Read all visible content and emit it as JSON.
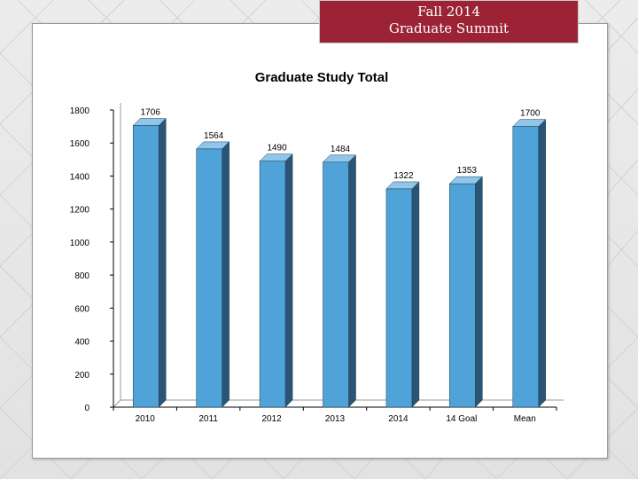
{
  "banner": {
    "line1": "Fall 2014",
    "line2": "Graduate Summit"
  },
  "colors": {
    "banner_bg": "#9b2335",
    "bar_front": "#4fa3d8",
    "bar_side": "#2b5574",
    "bar_top": "#8fc6ea"
  },
  "chart_data": {
    "type": "bar",
    "title": "Graduate Study Total",
    "xlabel": "",
    "ylabel": "",
    "categories": [
      "2010",
      "2011",
      "2012",
      "2013",
      "2014",
      "14 Goal",
      "Mean"
    ],
    "values": [
      1706,
      1564,
      1490,
      1484,
      1322,
      1353,
      1700
    ],
    "ylim": [
      0,
      1800
    ],
    "yticks": [
      0,
      200,
      400,
      600,
      800,
      1000,
      1200,
      1400,
      1600,
      1800
    ],
    "grid": false,
    "legend": "none",
    "style": "3d-column"
  }
}
